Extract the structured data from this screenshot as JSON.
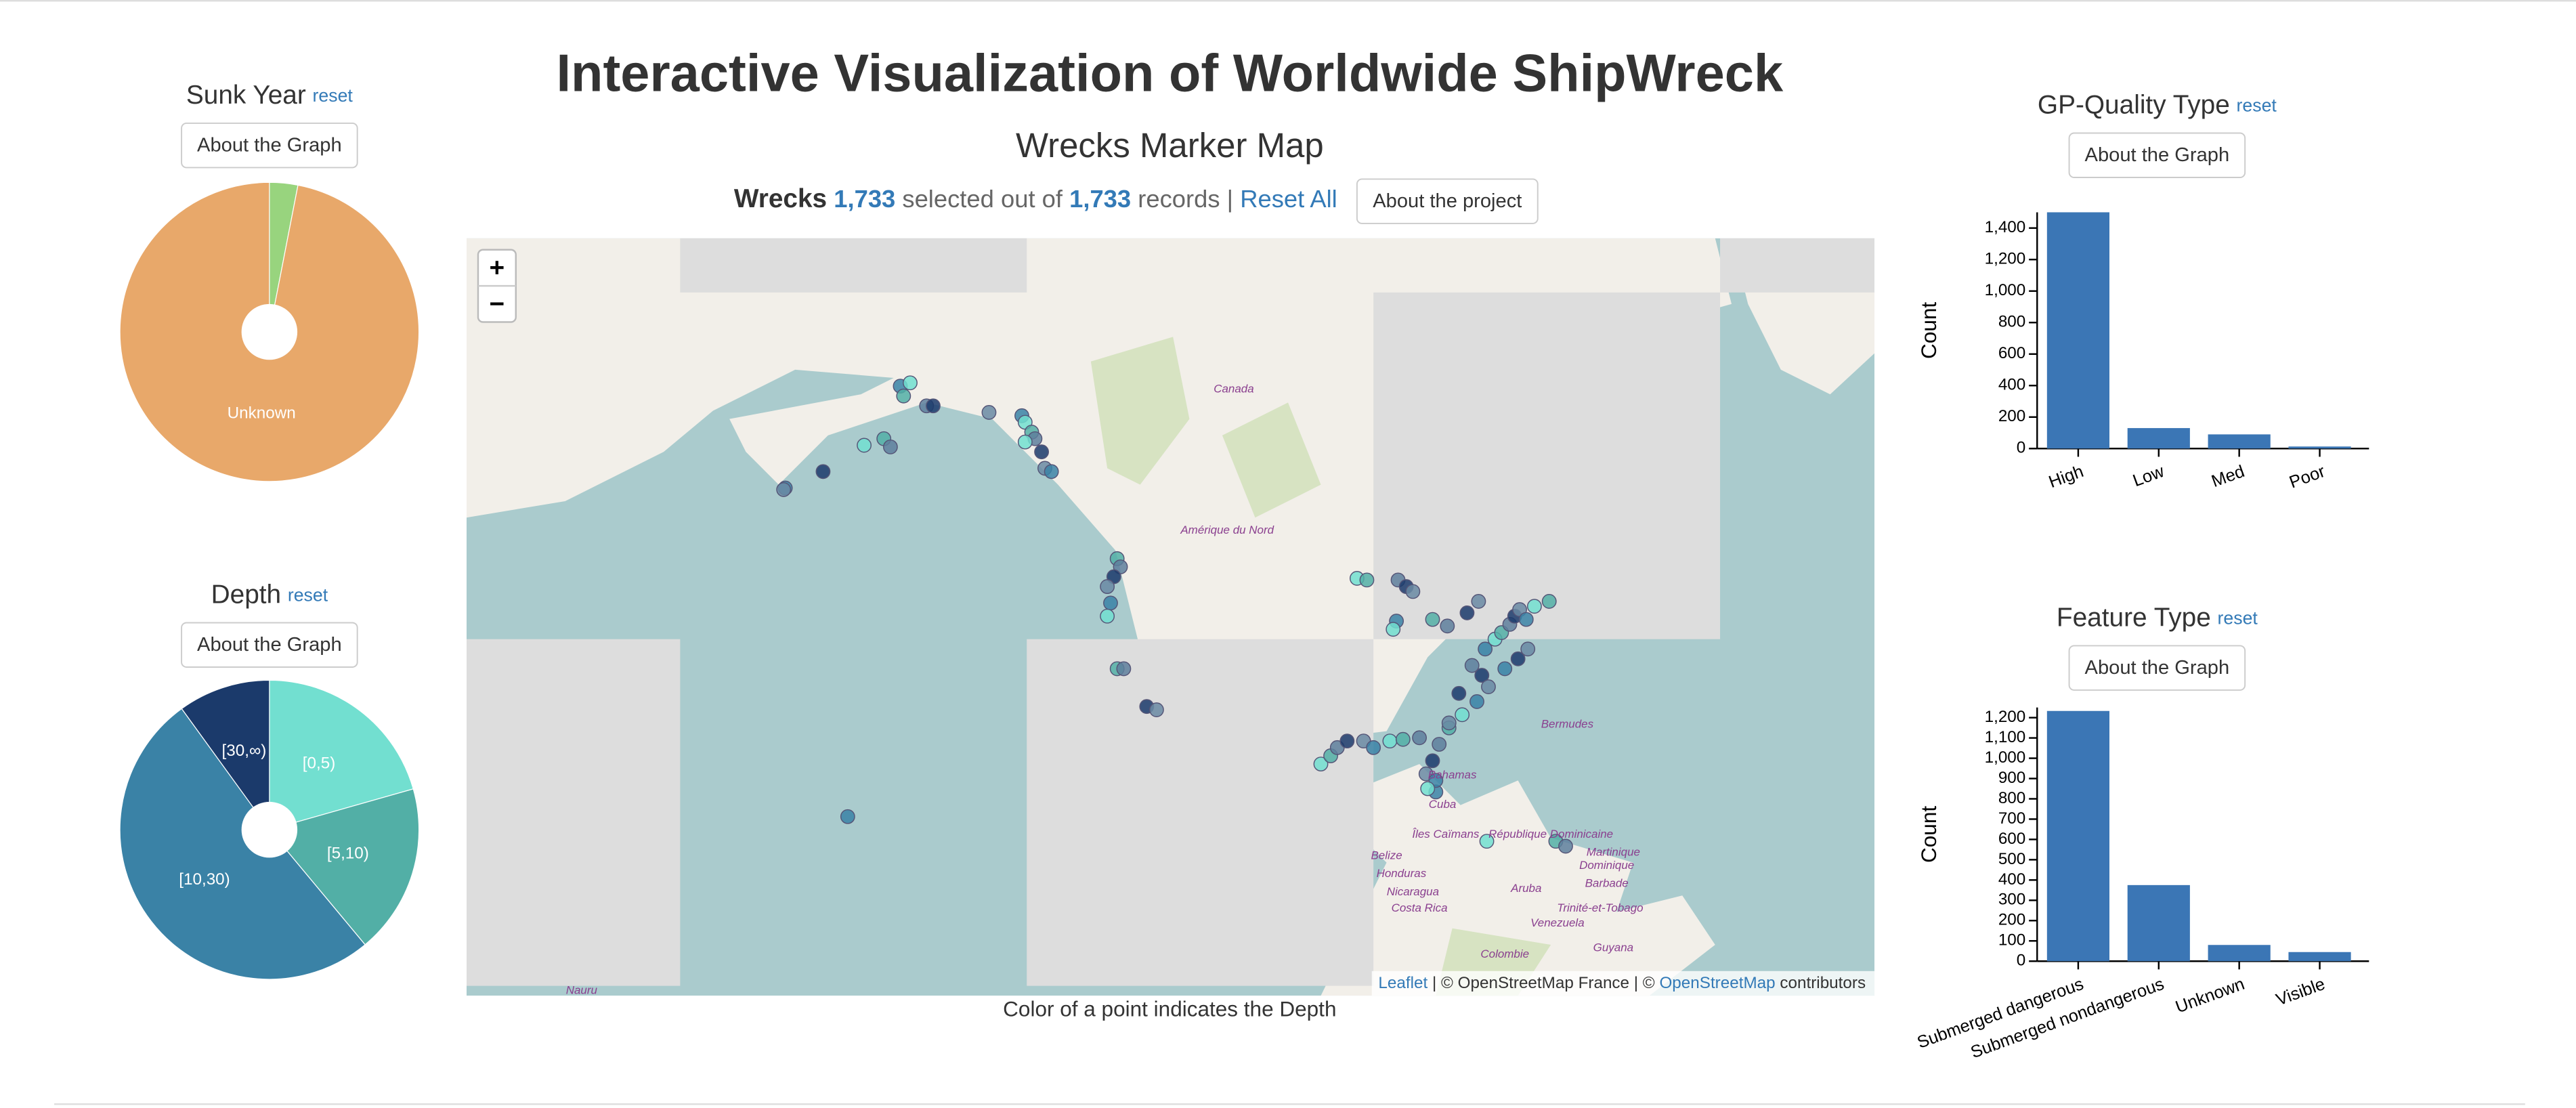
{
  "header": {
    "title": "Interactive Visualization of Worldwide ShipWreck"
  },
  "map_panel": {
    "title": "Wrecks Marker Map",
    "summary": {
      "label": "Wrecks",
      "selected": "1,733",
      "middle": "selected out of",
      "total": "1,733",
      "suffix": "records |",
      "reset": "Reset All"
    },
    "about_button": "About the project",
    "zoom_in": "+",
    "zoom_out": "−",
    "place_labels": [
      "Canada",
      "Amérique du Nord",
      "Bermudes",
      "Bahamas",
      "Cuba",
      "Îles Caïmans",
      "République Dominicaine",
      "Belize",
      "Honduras",
      "Nicaragua",
      "Costa Rica",
      "Aruba",
      "Barbade",
      "Trinité-et-Tobago",
      "Venezuela",
      "Colombie",
      "Guyana",
      "Martinique",
      "Dominique",
      "Nauru"
    ],
    "attribution": {
      "leaflet": "Leaflet",
      "middle": "| © OpenStreetMap France | ©",
      "osm": "OpenStreetMap",
      "end": "contributors"
    },
    "caption": "Color of a point indicates the Depth"
  },
  "sunk_year": {
    "type": "pie",
    "title": "Sunk Year",
    "reset": "reset",
    "button": "About the Graph",
    "categories": [
      null,
      "Unknown"
    ],
    "values": [
      53,
      1680
    ],
    "colors": [
      "#98d47e",
      "#e8a86a"
    ]
  },
  "depth": {
    "type": "pie",
    "title": "Depth",
    "reset": "reset",
    "button": "About the Graph",
    "categories": [
      "[0,5)",
      "[5,10)",
      "[10,30)",
      "[30,∞)"
    ],
    "values": [
      357,
      318,
      885,
      173
    ],
    "colors": [
      "#72dfd0",
      "#52afa6",
      "#3a82a6",
      "#1b3a6b"
    ]
  },
  "gp_quality": {
    "type": "bar",
    "title": "GP-Quality Type",
    "reset": "reset",
    "button": "About the Graph",
    "y_label": "Count",
    "categories": [
      "High",
      "Low",
      "Med",
      "Poor"
    ],
    "values": [
      1500,
      130,
      90,
      13
    ],
    "color": "#3b76b5",
    "ylim": [
      0,
      1500
    ],
    "yticks": [
      0,
      200,
      400,
      600,
      800,
      {
        "value": 1000,
        "label": "1,000"
      },
      {
        "value": 1200,
        "label": "1,200"
      },
      {
        "value": 1400,
        "label": "1,400"
      }
    ]
  },
  "feature_type": {
    "type": "bar",
    "title": "Feature Type",
    "reset": "reset",
    "button": "About the Graph",
    "y_label": "Count",
    "categories": [
      "Submerged dangerous",
      "Submerged nondangerous",
      "Unknown",
      "Visible"
    ],
    "values": [
      1233,
      375,
      80,
      45
    ],
    "color": "#3b76b5",
    "ylim": [
      0,
      1250
    ],
    "yticks": [
      0,
      100,
      200,
      300,
      400,
      500,
      600,
      700,
      800,
      900,
      {
        "value": 1000,
        "label": "1,000"
      },
      {
        "value": 1100,
        "label": "1,100"
      },
      {
        "value": 1200,
        "label": "1,200"
      }
    ]
  }
}
